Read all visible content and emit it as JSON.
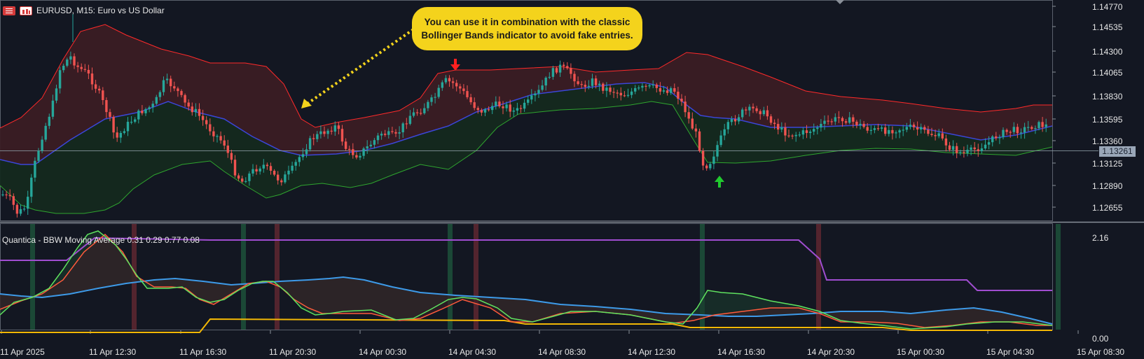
{
  "header": {
    "symbol_line": "EURUSD, M15:  Euro vs US Dollar",
    "menu_icon": "menu-icon",
    "calendar_icon": "calendar-icon"
  },
  "callout": {
    "line1": "You can use it in combination with the classic",
    "line2": "Bollinger Bands indicator to avoid fake entries."
  },
  "indicator": {
    "title": "Quantica - BBW Moving Average 0.31 0.29 0.77 0.08",
    "scale_top": "2.16",
    "scale_bottom": "0.00"
  },
  "price_axis": [
    "1.14770",
    "1.14535",
    "1.14300",
    "1.14065",
    "1.13830",
    "1.13595",
    "1.13360",
    "1.13125",
    "1.12890",
    "1.12655"
  ],
  "current_price": "1.13261",
  "time_axis": [
    "11 Apr 2025",
    "11 Apr 12:30",
    "11 Apr 16:30",
    "11 Apr 20:30",
    "14 Apr 00:30",
    "14 Apr 04:30",
    "14 Apr 08:30",
    "14 Apr 12:30",
    "14 Apr 16:30",
    "14 Apr 20:30",
    "15 Apr 00:30",
    "15 Apr 04:30",
    "15 Apr 08:30"
  ],
  "colors": {
    "background": "#131722",
    "bull": "#26a69a",
    "bear": "#ef5350",
    "upper_band": "#ff2a2a",
    "lower_band": "#2fa52f",
    "middle_band": "#3b46d8",
    "callout": "#f4d31c",
    "bbw_green": "#5fe35f",
    "bbw_red": "#ff5a3c",
    "ma_blue": "#3d9ae8",
    "level_purple": "#a04dd0",
    "level_yellow": "#f2b705"
  },
  "chart_data": {
    "type": "candlestick",
    "symbol": "EURUSD",
    "timeframe": "M15",
    "ylim": [
      1.1255,
      1.148
    ],
    "current_price": 1.13261,
    "indicators": [
      "Bollinger Bands",
      "BBW Moving Average"
    ],
    "bbw_ylim": [
      0.0,
      2.16
    ]
  }
}
